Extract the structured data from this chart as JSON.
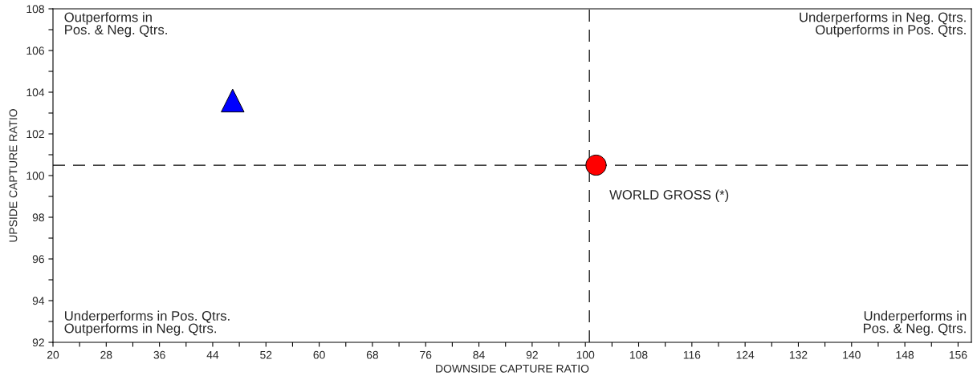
{
  "chart_data": {
    "type": "scatter",
    "xlabel": "DOWNSIDE CAPTURE RATIO",
    "ylabel": "UPSIDE CAPTURE RATIO",
    "xlim": [
      20,
      158
    ],
    "ylim": [
      92,
      108
    ],
    "xticks": [
      20,
      {
        "value": 24,
        "label": null
      },
      28,
      {
        "value": 32,
        "label": null
      },
      36,
      {
        "value": 40,
        "label": null
      },
      44,
      {
        "value": 48,
        "label": null
      },
      52,
      {
        "value": 56,
        "label": null
      },
      60,
      {
        "value": 64,
        "label": null
      },
      68,
      {
        "value": 72,
        "label": null
      },
      76,
      {
        "value": 80,
        "label": null
      },
      84,
      {
        "value": 88,
        "label": null
      },
      92,
      {
        "value": 96,
        "label": null
      },
      100,
      {
        "value": 104,
        "label": null
      },
      108,
      {
        "value": 112,
        "label": null
      },
      116,
      {
        "value": 120,
        "label": null
      },
      124,
      {
        "value": 128,
        "label": null
      },
      132,
      {
        "value": 136,
        "label": null
      },
      140,
      {
        "value": 144,
        "label": null
      },
      148,
      {
        "value": 152,
        "label": null
      },
      156
    ],
    "yticks": [
      92,
      {
        "value": 93,
        "label": null
      },
      94,
      {
        "value": 95,
        "label": null
      },
      96,
      {
        "value": 97,
        "label": null
      },
      98,
      {
        "value": 99,
        "label": null
      },
      100,
      {
        "value": 101,
        "label": null
      },
      102,
      {
        "value": 103,
        "label": null
      },
      104,
      {
        "value": 105,
        "label": null
      },
      106,
      {
        "value": 107,
        "label": null
      },
      108
    ],
    "grid": false,
    "legend": false,
    "series": [
      {
        "color": "#0000ff",
        "marker": "triangle",
        "x": [
          47
        ],
        "values": [
          103.6
        ]
      },
      {
        "color": "#ff0000",
        "marker": "circle",
        "x": [
          101.6
        ],
        "values": [
          100.5
        ]
      }
    ],
    "ref_lines": [
      {
        "axis": "x",
        "value": 100.6,
        "line_style": "dashed",
        "color": "#000000"
      },
      {
        "axis": "y",
        "value": 100.5,
        "line_style": "dashed",
        "color": "#000000"
      }
    ],
    "annotations": [
      "Outperforms in\nPos. & Neg. Qtrs.",
      "Underperforms in Neg. Qtrs.\nOutperforms in Pos. Qtrs.",
      "Underperforms in Pos. Qtrs.\nOutperforms in Neg. Qtrs.",
      "Underperforms in\nPos. & Neg. Qtrs.",
      {
        "text": "WORLD GROSS (*)",
        "x": 101.6,
        "y": 100.5
      }
    ]
  }
}
